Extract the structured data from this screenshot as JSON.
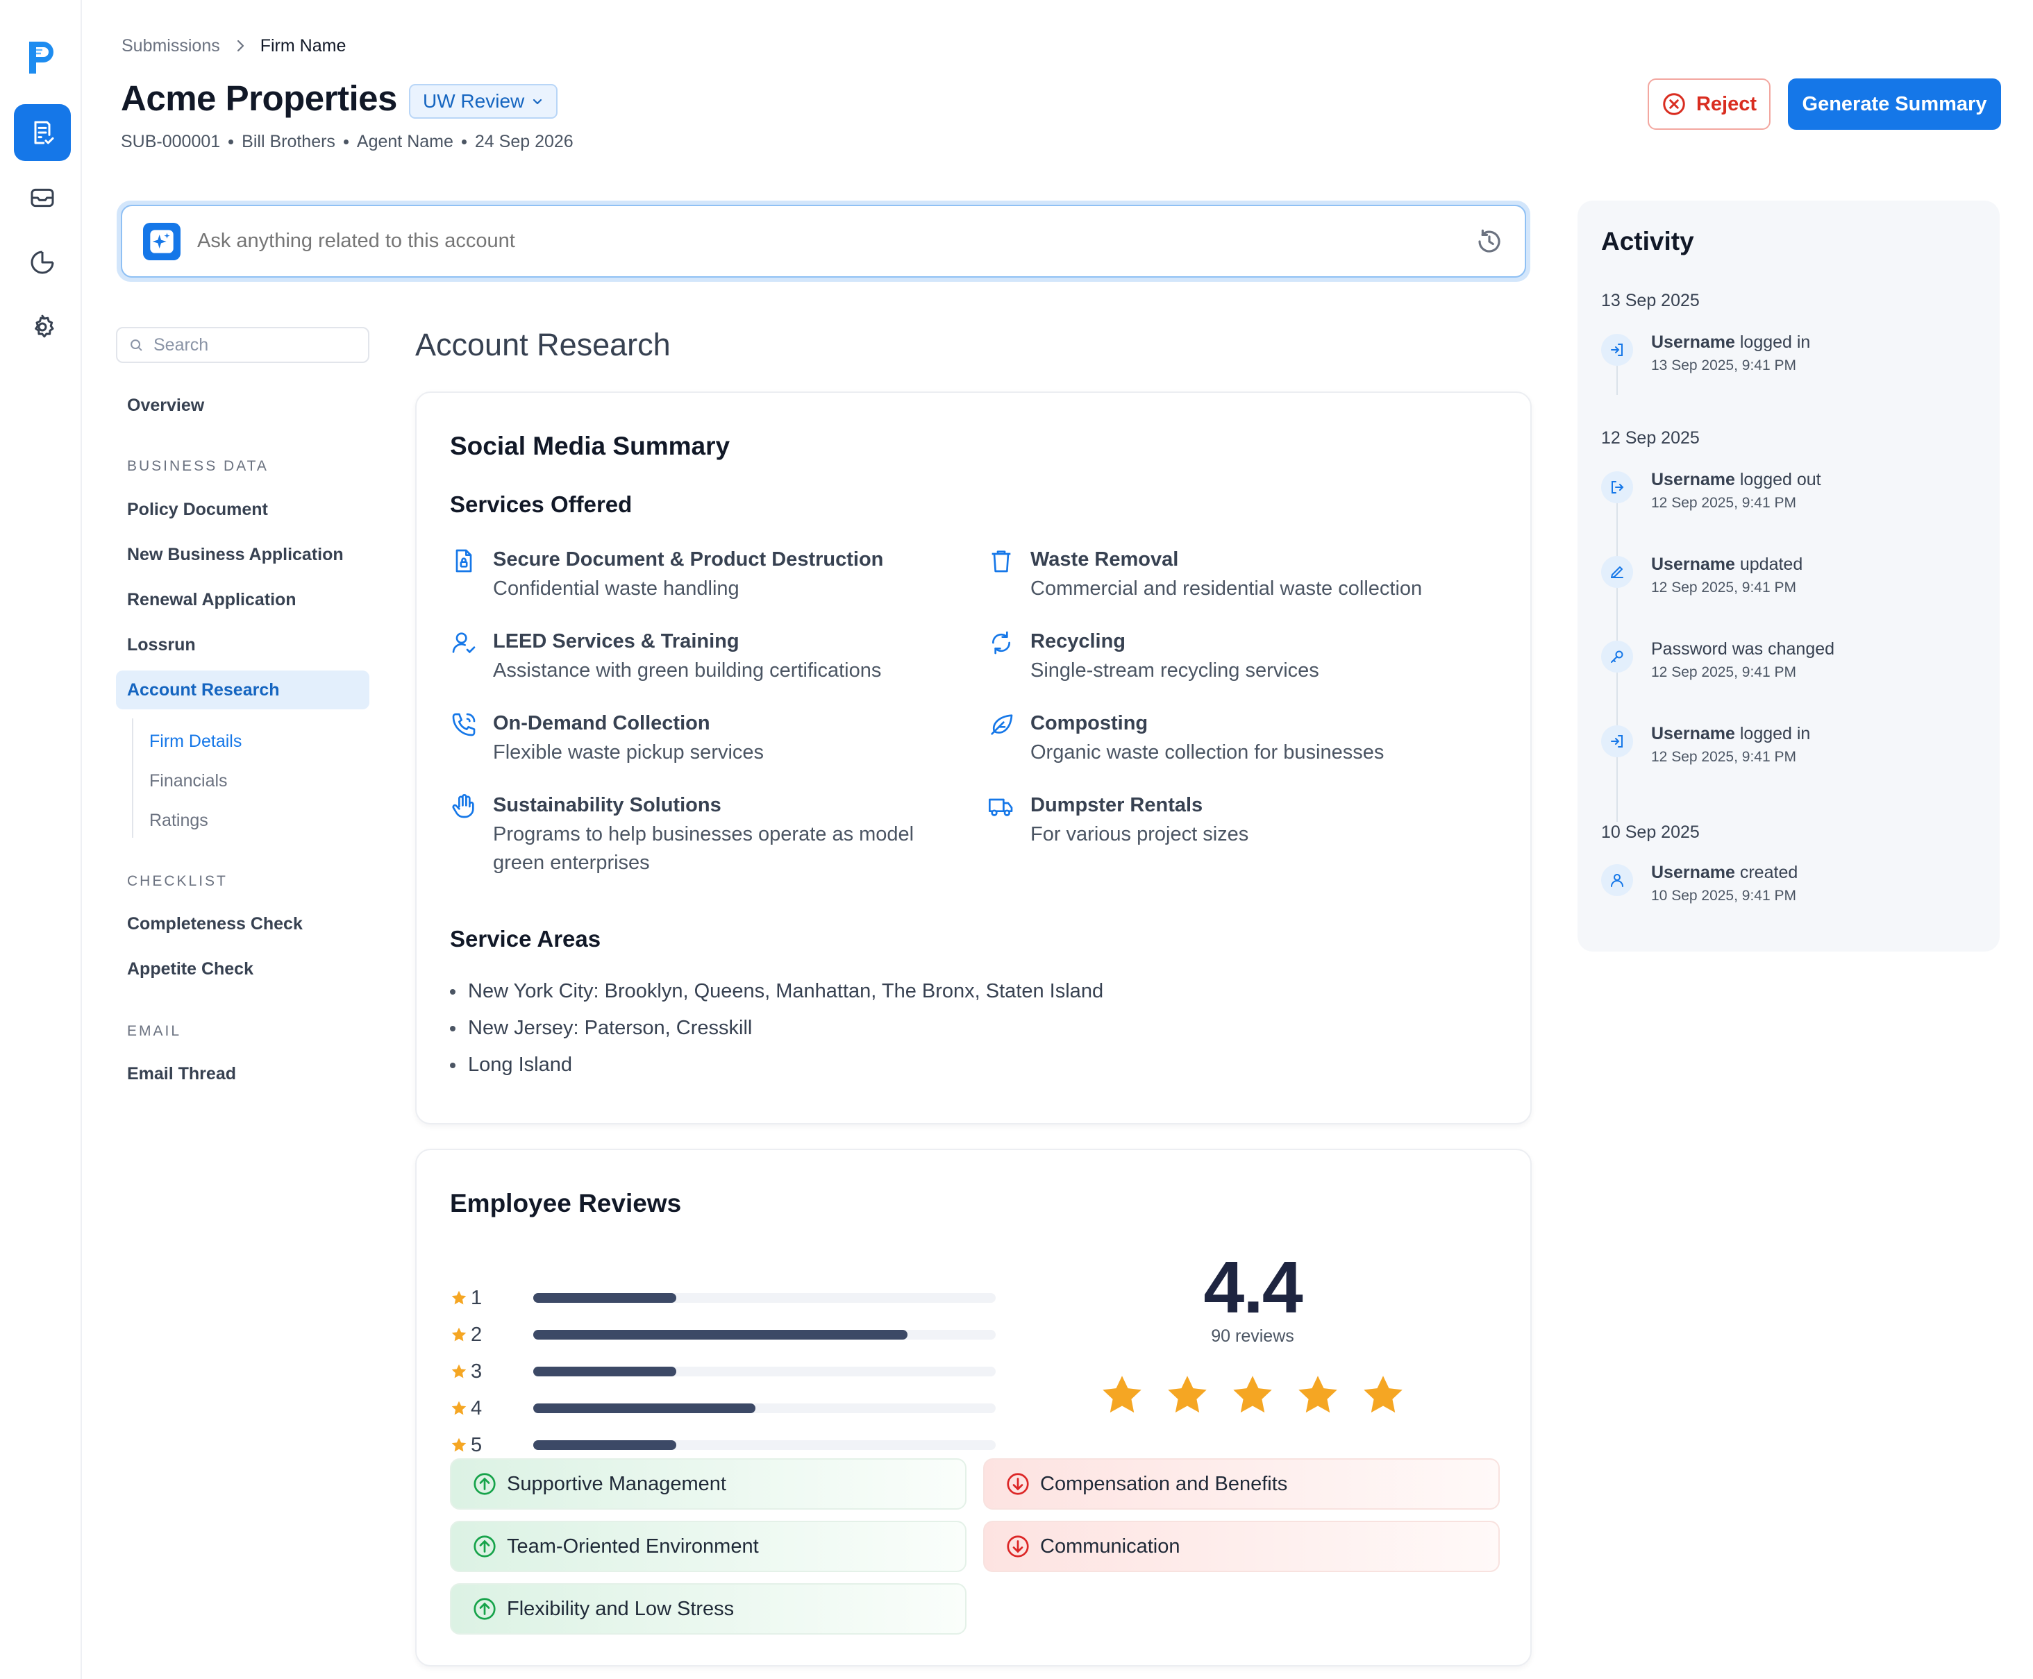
{
  "breadcrumb": {
    "root": "Submissions",
    "current": "Firm Name"
  },
  "header": {
    "title": "Acme Properties",
    "status": "UW Review",
    "meta": [
      "SUB-000001",
      "Bill Brothers",
      "Agent Name",
      "24 Sep 2026"
    ],
    "reject_label": "Reject",
    "generate_label": "Generate Summary"
  },
  "ask": {
    "placeholder": "Ask anything related to this account"
  },
  "nav": {
    "search_placeholder": "Search",
    "overview": "Overview",
    "sections": {
      "business_data": "BUSINESS DATA",
      "checklist": "CHECKLIST",
      "email": "EMAIL"
    },
    "items": {
      "policy": "Policy Document",
      "nba": "New Business Application",
      "renewal": "Renewal Application",
      "lossrun": "Lossrun",
      "research": "Account Research",
      "completeness": "Completeness Check",
      "appetite": "Appetite Check",
      "email_thread": "Email Thread"
    },
    "sub": [
      "Firm Details",
      "Financials",
      "Ratings"
    ]
  },
  "main": {
    "section_title": "Account Research",
    "social": {
      "title": "Social Media Summary",
      "services_heading": "Services Offered",
      "services": [
        {
          "icon": "secure-document-icon",
          "title": "Secure Document & Product Destruction",
          "desc": "Confidential waste handling"
        },
        {
          "icon": "trash-icon",
          "title": "Waste Removal",
          "desc": "Commercial and residential waste collection"
        },
        {
          "icon": "user-check-icon",
          "title": "LEED Services & Training",
          "desc": "Assistance with green building certifications"
        },
        {
          "icon": "recycle-icon",
          "title": "Recycling",
          "desc": "Single-stream recycling services"
        },
        {
          "icon": "phone-icon",
          "title": "On-Demand Collection",
          "desc": "Flexible waste pickup services"
        },
        {
          "icon": "leaf-icon",
          "title": "Composting",
          "desc": "Organic waste collection for businesses"
        },
        {
          "icon": "hand-icon",
          "title": "Sustainability Solutions",
          "desc": "Programs to help businesses operate as model green enterprises"
        },
        {
          "icon": "truck-icon",
          "title": "Dumpster Rentals",
          "desc": "For various project sizes"
        }
      ],
      "areas_heading": "Service Areas",
      "areas": [
        "New York City: Brooklyn, Queens, Manhattan, The Bronx, Staten Island",
        "New Jersey: Paterson, Cresskill",
        "Long Island"
      ]
    },
    "reviews": {
      "title": "Employee Reviews",
      "rating": "4.4",
      "count": "90 reviews",
      "stars": 5,
      "distribution": [
        {
          "label": "1",
          "fraction": 0.31
        },
        {
          "label": "2",
          "fraction": 0.81
        },
        {
          "label": "3",
          "fraction": 0.31
        },
        {
          "label": "4",
          "fraction": 0.48
        },
        {
          "label": "5",
          "fraction": 0.31
        }
      ],
      "pros": [
        "Supportive Management",
        "Team-Oriented Environment",
        "Flexibility and Low Stress"
      ],
      "cons": [
        "Compensation and Benefits",
        "Communication"
      ]
    }
  },
  "activity": {
    "title": "Activity",
    "days": [
      "13 Sep 2025",
      "12 Sep 2025",
      "10 Sep 2025"
    ],
    "events": [
      {
        "icon": "login-icon",
        "user": "Username",
        "action": "logged in",
        "time": "13 Sep 2025, 9:41 PM"
      },
      {
        "icon": "logout-icon",
        "user": "Username",
        "action": "logged out",
        "time": "12 Sep 2025, 9:41 PM"
      },
      {
        "icon": "pencil-icon",
        "user": "Username",
        "action": "updated",
        "time": "12 Sep 2025, 9:41 PM"
      },
      {
        "icon": "key-icon",
        "user": "",
        "action": "Password was changed",
        "time": "12 Sep 2025, 9:41 PM"
      },
      {
        "icon": "login-icon",
        "user": "Username",
        "action": "logged in",
        "time": "12 Sep 2025, 9:41 PM"
      },
      {
        "icon": "user-icon",
        "user": "Username",
        "action": "created",
        "time": "10 Sep 2025, 9:41 PM"
      }
    ]
  },
  "colors": {
    "accent": "#1577e8",
    "reject": "#d92d20",
    "star": "#f5a623",
    "bar": "#3c4966",
    "pro": "#16a34a",
    "con": "#dc2626"
  }
}
